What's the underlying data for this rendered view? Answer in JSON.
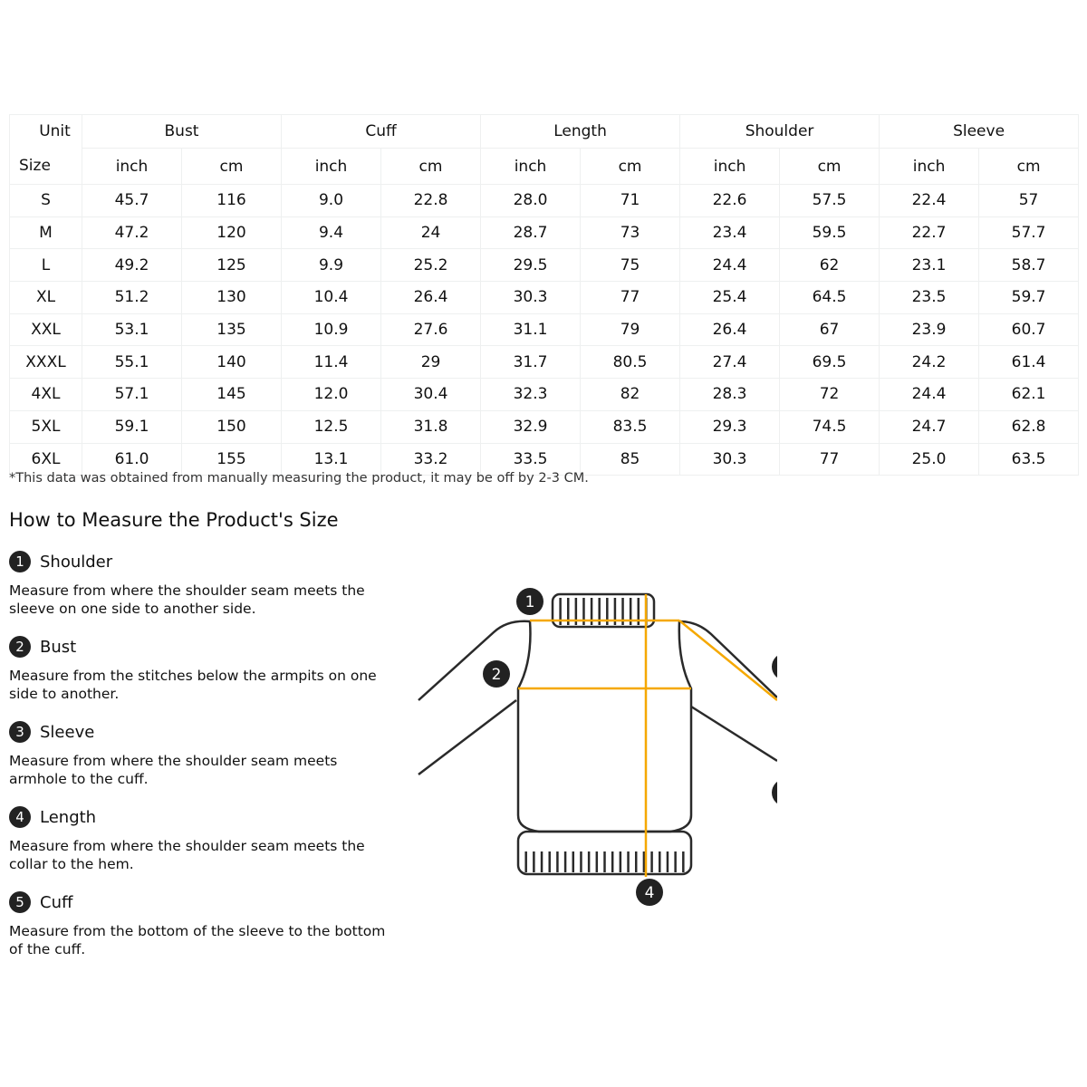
{
  "table": {
    "unit_label": "Unit",
    "size_label": "Size",
    "groups": [
      "Bust",
      "Cuff",
      "Length",
      "Shoulder",
      "Sleeve"
    ],
    "subunits": [
      "inch",
      "cm"
    ],
    "rows": [
      [
        "S",
        "45.7",
        "116",
        "9.0",
        "22.8",
        "28.0",
        "71",
        "22.6",
        "57.5",
        "22.4",
        "57"
      ],
      [
        "M",
        "47.2",
        "120",
        "9.4",
        "24",
        "28.7",
        "73",
        "23.4",
        "59.5",
        "22.7",
        "57.7"
      ],
      [
        "L",
        "49.2",
        "125",
        "9.9",
        "25.2",
        "29.5",
        "75",
        "24.4",
        "62",
        "23.1",
        "58.7"
      ],
      [
        "XL",
        "51.2",
        "130",
        "10.4",
        "26.4",
        "30.3",
        "77",
        "25.4",
        "64.5",
        "23.5",
        "59.7"
      ],
      [
        "XXL",
        "53.1",
        "135",
        "10.9",
        "27.6",
        "31.1",
        "79",
        "26.4",
        "67",
        "23.9",
        "60.7"
      ],
      [
        "XXXL",
        "55.1",
        "140",
        "11.4",
        "29",
        "31.7",
        "80.5",
        "27.4",
        "69.5",
        "24.2",
        "61.4"
      ],
      [
        "4XL",
        "57.1",
        "145",
        "12.0",
        "30.4",
        "32.3",
        "82",
        "28.3",
        "72",
        "24.4",
        "62.1"
      ],
      [
        "5XL",
        "59.1",
        "150",
        "12.5",
        "31.8",
        "32.9",
        "83.5",
        "29.3",
        "74.5",
        "24.7",
        "62.8"
      ],
      [
        "6XL",
        "61.0",
        "155",
        "13.1",
        "33.2",
        "33.5",
        "85",
        "30.3",
        "77",
        "25.0",
        "63.5"
      ]
    ]
  },
  "note": "*This data was obtained from manually measuring the product, it may be off by 2-3 CM.",
  "guide": {
    "title": "How to Measure the Product's Size",
    "items": [
      {
        "num": "1",
        "title": "Shoulder",
        "desc": "Measure from where the shoulder seam meets the sleeve on one side to another side."
      },
      {
        "num": "2",
        "title": "Bust",
        "desc": "Measure from the stitches below the armpits on one side to another."
      },
      {
        "num": "3",
        "title": "Sleeve",
        "desc": "Measure from where the shoulder seam meets armhole to the cuff."
      },
      {
        "num": "4",
        "title": "Length",
        "desc": "Measure from where the shoulder seam meets the collar to the hem."
      },
      {
        "num": "5",
        "title": "Cuff",
        "desc": "Measure from the bottom of the sleeve to the bottom of the cuff."
      }
    ]
  },
  "diagram": {
    "labels": [
      "1",
      "2",
      "4"
    ],
    "line_color": "#f5a800",
    "outline_color": "#2a2a2a"
  }
}
